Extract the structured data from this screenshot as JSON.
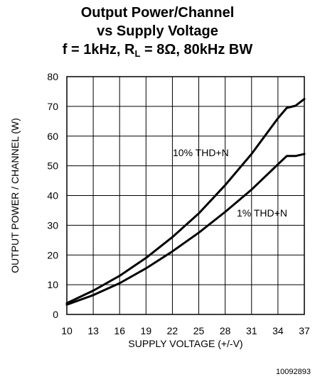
{
  "chart_data": {
    "type": "line",
    "title": "Output Power/Channel",
    "subtitle_line1": "vs Supply Voltage",
    "subtitle_line2": {
      "prefix": "f = 1kHz, R",
      "sub": "L",
      "suffix": " = 8Ω, 80kHz BW"
    },
    "xlabel": "SUPPLY VOLTAGE (+/-V)",
    "ylabel": "OUTPUT POWER / CHANNEL (W)",
    "xlim": [
      10,
      37
    ],
    "ylim": [
      0,
      80
    ],
    "xticks": [
      10,
      13,
      16,
      19,
      22,
      25,
      28,
      31,
      34,
      37
    ],
    "yticks": [
      0,
      10,
      20,
      30,
      40,
      50,
      60,
      70,
      80
    ],
    "grid": true,
    "series": [
      {
        "name": "10% THD+N",
        "x": [
          10,
          13,
          16,
          19,
          22,
          25,
          28,
          31,
          34,
          35,
          36,
          37
        ],
        "y": [
          3.8,
          8,
          13,
          19,
          26,
          34,
          43.5,
          54,
          66,
          69.5,
          70.2,
          72.5
        ]
      },
      {
        "name": "1% THD+N",
        "x": [
          10,
          13,
          16,
          19,
          22,
          25,
          28,
          31,
          34,
          35,
          36,
          37
        ],
        "y": [
          3.3,
          6.5,
          10.5,
          15.5,
          21.2,
          27.5,
          34.5,
          42,
          50.5,
          53.3,
          53.3,
          54
        ]
      }
    ],
    "annotations": [
      "10% THD+N",
      "1% THD+N"
    ],
    "figure_id": "10092893"
  }
}
